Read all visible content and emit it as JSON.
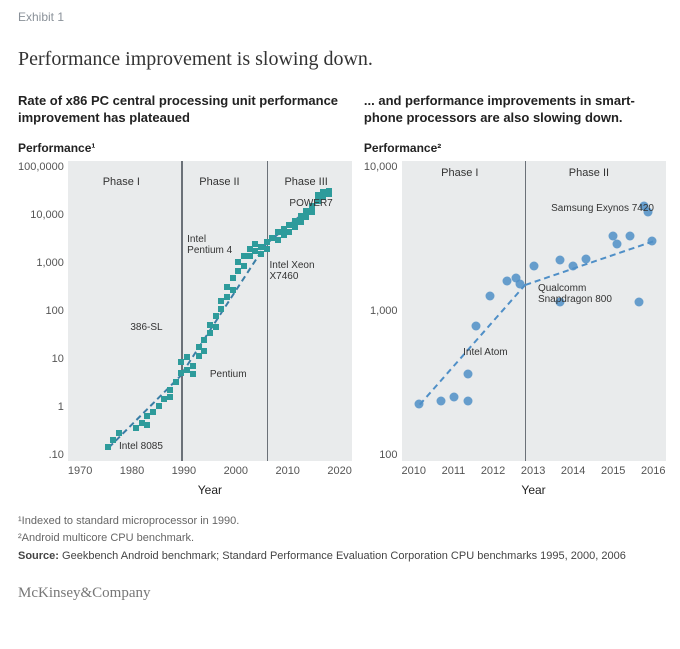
{
  "exhibit_label": "Exhibit 1",
  "main_title": "Performance improvement is slowing down.",
  "left": {
    "subtitle": "Rate of x86 PC central processing unit performance improvement has plateaued",
    "y_title": "Performance¹",
    "type": "scatter",
    "scale": "log",
    "plot_bg": "#e9ebec",
    "marker": {
      "shape": "square",
      "size": 6,
      "color": "#2e9b9b"
    },
    "trend_color": "#3a7ea6",
    "xlim": [
      1970,
      2020
    ],
    "ylim_log10": [
      -1.3,
      5
    ],
    "y_ticks": [
      "100,0000",
      "10,000",
      "1,000",
      "100",
      "10",
      "1",
      ".10"
    ],
    "x_ticks": [
      "1970",
      "1980",
      "1990",
      "2000",
      "2010",
      "2020"
    ],
    "x_label": "Year",
    "phase_dividers_x": [
      1990,
      2005
    ],
    "phase_labels": [
      {
        "text": "Phase I",
        "x": 1980,
        "y_log": 4.55
      },
      {
        "text": "Phase II",
        "x": 1997,
        "y_log": 4.55
      },
      {
        "text": "Phase III",
        "x": 2012,
        "y_log": 4.55
      }
    ],
    "annotations": [
      {
        "text": "POWER7",
        "x": 2009,
        "y_log": 4.1
      },
      {
        "text": "Intel\nPentium 4",
        "x": 1991,
        "y_log": 3.35
      },
      {
        "text": "Intel Xeon\nX7460",
        "x": 2005.5,
        "y_log": 2.8
      },
      {
        "text": "386-SL",
        "x": 1981,
        "y_log": 1.5
      },
      {
        "text": "Pentium",
        "x": 1995,
        "y_log": 0.5
      },
      {
        "text": "Intel 8085",
        "x": 1979,
        "y_log": -1.0
      }
    ],
    "points": [
      [
        1977,
        -1.0
      ],
      [
        1978,
        -0.85
      ],
      [
        1979,
        -0.72
      ],
      [
        1982,
        -0.6
      ],
      [
        1983,
        -0.5
      ],
      [
        1984,
        -0.35
      ],
      [
        1984,
        -0.55
      ],
      [
        1985,
        -0.28
      ],
      [
        1986,
        -0.14
      ],
      [
        1987,
        0.0
      ],
      [
        1988,
        0.2
      ],
      [
        1988,
        0.05
      ],
      [
        1989,
        0.35
      ],
      [
        1990,
        0.55
      ],
      [
        1990,
        0.78
      ],
      [
        1991,
        0.62
      ],
      [
        1991,
        0.88
      ],
      [
        1992,
        0.7
      ],
      [
        1992,
        0.52
      ],
      [
        1993,
        0.9
      ],
      [
        1993,
        1.1
      ],
      [
        1994,
        1.0
      ],
      [
        1994,
        1.25
      ],
      [
        1995,
        1.38
      ],
      [
        1995,
        1.55
      ],
      [
        1996,
        1.52
      ],
      [
        1996,
        1.75
      ],
      [
        1997,
        1.9
      ],
      [
        1997,
        2.05
      ],
      [
        1998,
        2.15
      ],
      [
        1998,
        2.35
      ],
      [
        1999,
        2.3
      ],
      [
        1999,
        2.55
      ],
      [
        2000,
        2.7
      ],
      [
        2000,
        2.88
      ],
      [
        2001,
        2.8
      ],
      [
        2001,
        3.0
      ],
      [
        2002,
        3.0
      ],
      [
        2002,
        3.15
      ],
      [
        2003,
        3.1
      ],
      [
        2003,
        3.25
      ],
      [
        2004,
        3.2
      ],
      [
        2004,
        3.05
      ],
      [
        2005,
        3.3
      ],
      [
        2005,
        3.15
      ],
      [
        2006,
        3.38
      ],
      [
        2007,
        3.5
      ],
      [
        2007,
        3.35
      ],
      [
        2008,
        3.58
      ],
      [
        2008,
        3.45
      ],
      [
        2009,
        3.65
      ],
      [
        2009,
        3.5
      ],
      [
        2010,
        3.75
      ],
      [
        2010,
        3.62
      ],
      [
        2011,
        3.85
      ],
      [
        2011,
        3.72
      ],
      [
        2012,
        3.95
      ],
      [
        2012,
        3.82
      ],
      [
        2013,
        4.05
      ],
      [
        2013,
        3.92
      ],
      [
        2014,
        4.15
      ],
      [
        2014,
        4.28
      ],
      [
        2015,
        4.35
      ],
      [
        2015,
        4.25
      ],
      [
        2016,
        4.38
      ],
      [
        2016,
        4.3
      ]
    ]
  },
  "right": {
    "subtitle": "... and performance improvements in smart-phone processors are also slowing down.",
    "y_title": "Performance²",
    "type": "scatter",
    "scale": "log",
    "plot_bg": "#e9ebec",
    "marker": {
      "shape": "circle",
      "size": 9,
      "color": "#4f8fc7",
      "opacity": 0.85
    },
    "trend_color": "#4f8fc7",
    "xlim": [
      2010,
      2016
    ],
    "ylim_log10": [
      2,
      4
    ],
    "y_ticks": [
      "10,000",
      "1,000",
      "100"
    ],
    "x_ticks": [
      "2010",
      "2011",
      "2012",
      "2013",
      "2014",
      "2015",
      "2016"
    ],
    "x_label": "Year",
    "phase_dividers_x": [
      2012.8
    ],
    "phase_labels": [
      {
        "text": "Phase I",
        "x": 2011.4,
        "y_log": 3.92
      },
      {
        "text": "Phase II",
        "x": 2014.3,
        "y_log": 3.92
      }
    ],
    "annotations": [
      {
        "text": "Samsung Exynos 7420",
        "x": 2013.4,
        "y_log": 3.68
      },
      {
        "text": "Qualcomm\nSnapdragon 800",
        "x": 2013.1,
        "y_log": 3.15
      },
      {
        "text": "Intel Atom",
        "x": 2011.4,
        "y_log": 2.72
      }
    ],
    "points": [
      [
        2010.4,
        2.38
      ],
      [
        2010.9,
        2.4
      ],
      [
        2011.2,
        2.43
      ],
      [
        2011.5,
        2.58
      ],
      [
        2011.5,
        2.4
      ],
      [
        2011.7,
        2.9
      ],
      [
        2012.0,
        3.1
      ],
      [
        2012.4,
        3.2
      ],
      [
        2012.6,
        3.22
      ],
      [
        2012.7,
        3.18
      ],
      [
        2013.0,
        3.3
      ],
      [
        2013.6,
        3.06
      ],
      [
        2013.6,
        3.34
      ],
      [
        2013.9,
        3.3
      ],
      [
        2014.2,
        3.35
      ],
      [
        2014.8,
        3.5
      ],
      [
        2014.9,
        3.45
      ],
      [
        2015.2,
        3.5
      ],
      [
        2015.4,
        3.06
      ],
      [
        2015.5,
        3.7
      ],
      [
        2015.6,
        3.66
      ],
      [
        2015.7,
        3.47
      ]
    ]
  },
  "footnotes": [
    "¹Indexed to standard microprocessor in 1990.",
    "²Android multicore CPU benchmark."
  ],
  "source_label": "Source:",
  "source_text": "Geekbench Android benchmark; Standard Performance Evaluation Corporation CPU benchmarks 1995, 2000, 2006",
  "company": "McKinsey&Company"
}
